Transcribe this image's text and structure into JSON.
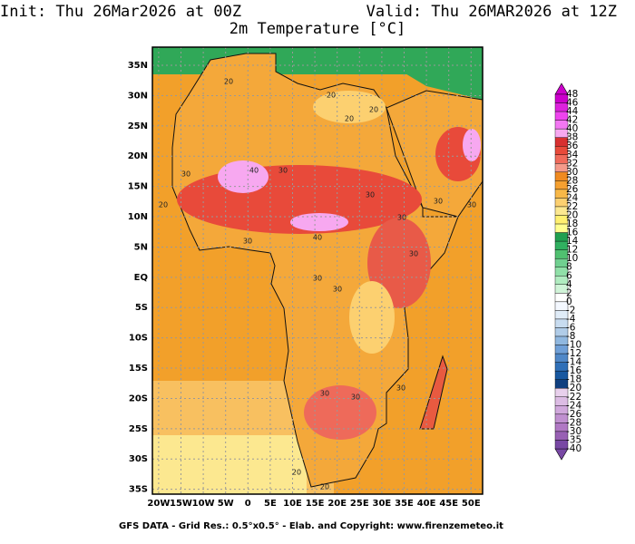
{
  "title_left": "Init: Thu 26Mar2026 at 00Z",
  "title_right": "Valid: Thu 26MAR2026 at 12Z",
  "subtitle": "2m Temperature [°C]",
  "footer": "GFS DATA - Grid Res.: 0.5°x0.5° - Elab. and Copyright: www.firenzemeteo.it",
  "lat_labels": [
    "35N",
    "30N",
    "25N",
    "20N",
    "15N",
    "10N",
    "5N",
    "EQ",
    "5S",
    "10S",
    "15S",
    "20S",
    "25S",
    "30S",
    "35S"
  ],
  "lon_labels": [
    "20W",
    "15W",
    "10W",
    "5W",
    "0",
    "5E",
    "10E",
    "15E",
    "20E",
    "25E",
    "30E",
    "35E",
    "40E",
    "45E",
    "50E"
  ],
  "contour_labels": [
    20,
    20,
    20,
    20,
    20,
    20,
    20,
    30,
    30,
    30,
    30,
    30,
    30,
    30,
    30,
    30,
    30,
    30,
    30,
    30,
    40,
    40
  ],
  "colorbar": {
    "labels": [
      48,
      46,
      44,
      42,
      40,
      38,
      36,
      34,
      32,
      30,
      28,
      26,
      24,
      22,
      20,
      18,
      16,
      14,
      12,
      10,
      8,
      6,
      4,
      2,
      0,
      -2,
      -4,
      -6,
      -8,
      -10,
      -12,
      -14,
      -16,
      -18,
      -20,
      -22,
      -24,
      -26,
      -28,
      -30,
      -35,
      -40
    ],
    "colors": [
      "#cc00cc",
      "#dd22dd",
      "#ee44ee",
      "#f377f3",
      "#f7a8f0",
      "#d83030",
      "#e84a3a",
      "#f06a5a",
      "#f49a8a",
      "#f08a20",
      "#f5a030",
      "#f8b848",
      "#fcd070",
      "#fce890",
      "#fff070",
      "#ffff90",
      "#20a050",
      "#30b060",
      "#50c070",
      "#70d090",
      "#90e0a8",
      "#b0ecc0",
      "#d0f4d8",
      "#ffffff",
      "#f4f8ff",
      "#e0ecf8",
      "#c8dcf0",
      "#b0cce8",
      "#90b8e0",
      "#70a0d8",
      "#5088c8",
      "#3070b8",
      "#1858a0",
      "#104080",
      "#e8d0ec",
      "#dcbce4",
      "#d0a8dc",
      "#c090d0",
      "#b078c4",
      "#9860b4",
      "#7848a4"
    ]
  }
}
